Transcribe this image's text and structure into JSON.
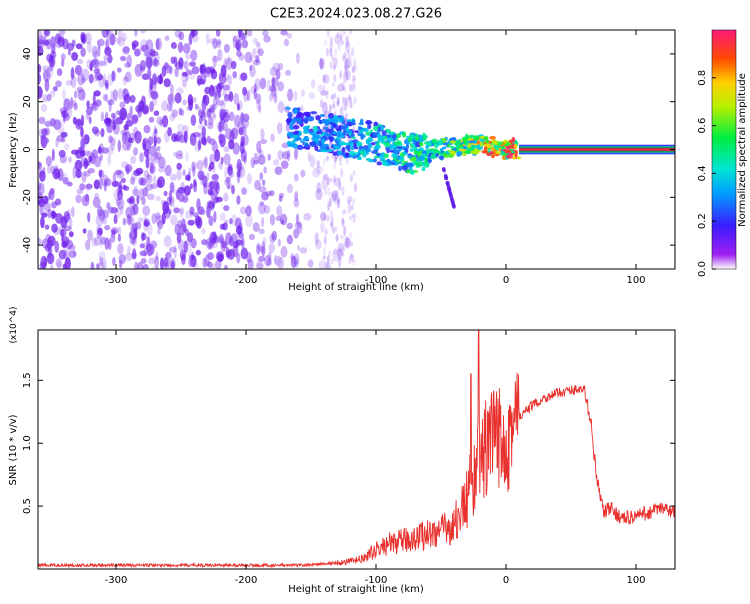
{
  "title": "C2E3.2024.023.08.27.G26",
  "colors": {
    "snr_line": "#e8302c",
    "spectrum_low": "#8a2be2",
    "spectrum_mid": "#00e676",
    "spectrum_high": "#ff1a66"
  },
  "chart_data": [
    {
      "type": "heatmap",
      "title": "C2E3.2024.023.08.27.G26",
      "xlabel": "Height of straight line (km)",
      "ylabel": "Frequency (Hz)",
      "xlim": [
        -360,
        130
      ],
      "ylim": [
        -50,
        50
      ],
      "xticks": [
        -300,
        -200,
        -100,
        0,
        100
      ],
      "yticks": [
        -40,
        -20,
        0,
        20,
        40
      ],
      "grid": false,
      "colorbar": {
        "label": "Normalized spectral amplitude",
        "range": [
          0,
          1
        ],
        "ticks": [
          "0.0",
          "0.2",
          "0.4",
          "0.6",
          "0.8"
        ],
        "colormap": "rainbow (violet to pink)"
      },
      "features": {
        "noise_region_x": [
          -360,
          -160
        ],
        "signal_track": [
          {
            "x": -170,
            "y": 10,
            "amplitude": 0.3
          },
          {
            "x": -150,
            "y": 8,
            "amplitude": 0.35
          },
          {
            "x": -130,
            "y": 6,
            "amplitude": 0.35
          },
          {
            "x": -110,
            "y": 4,
            "amplitude": 0.4
          },
          {
            "x": -90,
            "y": 1,
            "amplitude": 0.45
          },
          {
            "x": -70,
            "y": -2,
            "amplitude": 0.5
          },
          {
            "x": -50,
            "y": 0,
            "amplitude": 0.5
          },
          {
            "x": -30,
            "y": 2,
            "amplitude": 0.7
          },
          {
            "x": -10,
            "y": 1,
            "amplitude": 0.8
          },
          {
            "x": 10,
            "y": 0,
            "amplitude": 0.9
          },
          {
            "x": 130,
            "y": 0,
            "amplitude": 0.9
          }
        ],
        "steady_tone_x": [
          10,
          130
        ],
        "steady_tone_y": 0
      }
    },
    {
      "type": "line",
      "xlabel": "Height of straight line (km)",
      "ylabel": "SNR (10 * v/v)",
      "y_multiplier": "(x10^4)",
      "xlim": [
        -360,
        130
      ],
      "ylim": [
        0,
        1.9
      ],
      "xticks": [
        -300,
        -200,
        -100,
        0,
        100
      ],
      "yticks": [
        0.5,
        1.0,
        1.5
      ],
      "grid": false,
      "series": [
        {
          "color": "#e8302c",
          "x": [
            -360,
            -320,
            -280,
            -240,
            -200,
            -180,
            -160,
            -140,
            -130,
            -120,
            -110,
            -100,
            -90,
            -80,
            -70,
            -60,
            -50,
            -40,
            -30,
            -25,
            -20,
            -15,
            -10,
            0,
            10,
            20,
            30,
            40,
            50,
            55,
            60,
            65,
            70,
            75,
            80,
            90,
            100,
            110,
            120,
            130
          ],
          "y": [
            0.03,
            0.03,
            0.03,
            0.03,
            0.03,
            0.03,
            0.03,
            0.04,
            0.05,
            0.06,
            0.08,
            0.15,
            0.2,
            0.22,
            0.25,
            0.28,
            0.3,
            0.35,
            0.55,
            0.75,
            0.85,
            0.95,
            1.0,
            1.08,
            1.2,
            1.3,
            1.36,
            1.4,
            1.42,
            1.43,
            1.42,
            1.2,
            0.7,
            0.45,
            0.48,
            0.4,
            0.42,
            0.45,
            0.48,
            0.45
          ]
        }
      ],
      "peaks": [
        {
          "x": -21,
          "y": 1.9
        },
        {
          "x": -27,
          "y": 1.55
        }
      ]
    }
  ]
}
